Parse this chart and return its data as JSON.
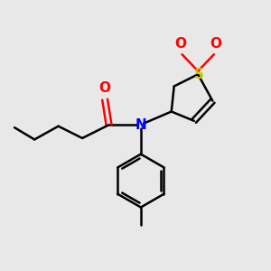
{
  "bg_color": "#e8e8e8",
  "bond_color": "#000000",
  "N_color": "#0000ff",
  "O_color": "#ff0000",
  "S_color": "#cccc00",
  "line_width": 1.8,
  "font_size": 10,
  "figsize": [
    3.0,
    3.0
  ],
  "dpi": 100,
  "xlim": [
    0,
    10
  ],
  "ylim": [
    0,
    10
  ]
}
